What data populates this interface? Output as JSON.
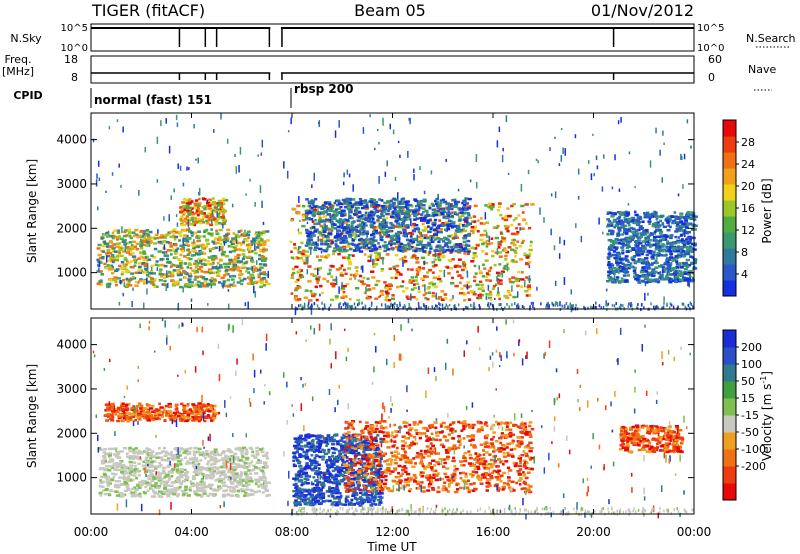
{
  "header": {
    "station": "TIGER (fitACF)",
    "beam": "Beam 05",
    "date": "01/Nov/2012"
  },
  "tracks": {
    "nsky_label": "N.Sky",
    "nsky_ticks": [
      "10^5",
      "10^0"
    ],
    "nsearch_label": "N.Search",
    "nsearch_ticks": [
      "10^5",
      "10^0"
    ],
    "freq_label_1": "Freq.",
    "freq_label_2": "[MHz]",
    "freq_ticks": [
      "18",
      "8"
    ],
    "nave_label": "Nave",
    "nave_ticks": [
      "60",
      "0"
    ],
    "cpid_label": "CPID",
    "cpid_segments": [
      {
        "name": "normal (fast) 151",
        "start_hour": 0,
        "end_hour": 7.1
      },
      {
        "name": "rbsp 200",
        "start_hour": 7.6,
        "end_hour": 24
      }
    ]
  },
  "chart_data": [
    {
      "type": "heatmap",
      "title": "",
      "xlabel": "Time UT",
      "ylabel": "Slant Range [km]",
      "x_ticks": [
        "00:00",
        "04:00",
        "08:00",
        "12:00",
        "16:00",
        "20:00",
        "00:00"
      ],
      "x_range_hours": [
        0,
        24
      ],
      "y_ticks": [
        1000,
        2000,
        3000,
        4000
      ],
      "ylim": [
        180,
        4600
      ],
      "colorbar": {
        "label": "Power [dB]",
        "ticks": [
          4,
          8,
          12,
          16,
          20,
          24,
          28
        ],
        "range": [
          0,
          32
        ],
        "colors": [
          "#1530e0",
          "#2a58c8",
          "#2f7a9c",
          "#3c9870",
          "#52ad40",
          "#9bc828",
          "#f0d018",
          "#f0a01a",
          "#f07014",
          "#ee3c10",
          "#e80808"
        ]
      },
      "regions": [
        {
          "name": "early echoes",
          "t": [
            0.2,
            7.0
          ],
          "r": [
            700,
            2000
          ],
          "level": "medium-high"
        },
        {
          "name": "early far band",
          "t": [
            3.5,
            5.3
          ],
          "r": [
            2100,
            2700
          ],
          "level": "high"
        },
        {
          "name": "main evening band",
          "t": [
            7.9,
            17.5
          ],
          "r": [
            400,
            2600
          ],
          "level": "high"
        },
        {
          "name": "diagonal band",
          "t": [
            8.5,
            15.0
          ],
          "r": [
            1500,
            2700
          ],
          "level": "low"
        },
        {
          "name": "late scatter",
          "t": [
            20.5,
            24.0
          ],
          "r": [
            800,
            2400
          ],
          "level": "low"
        }
      ],
      "data_gaps": [
        {
          "start_hour": 7.1,
          "end_hour": 7.6
        }
      ]
    },
    {
      "type": "heatmap",
      "title": "",
      "xlabel": "Time UT",
      "ylabel": "Slant Range [km]",
      "x_ticks": [
        "00:00",
        "04:00",
        "08:00",
        "12:00",
        "16:00",
        "20:00",
        "00:00"
      ],
      "x_range_hours": [
        0,
        24
      ],
      "y_ticks": [
        1000,
        2000,
        3000,
        4000
      ],
      "ylim": [
        180,
        4600
      ],
      "colorbar": {
        "label": "Velocity [m s^-1]",
        "ticks": [
          200,
          100,
          50,
          15,
          -15,
          -50,
          -100,
          -200
        ],
        "colors": [
          "#1a2bd8",
          "#2a50c8",
          "#2f7a8e",
          "#40a040",
          "#80c050",
          "#c8c8c0",
          "#f0a020",
          "#f07014",
          "#ee3c10",
          "#e80808"
        ]
      },
      "regions": [
        {
          "name": "ground scatter band",
          "t": [
            0.3,
            7.0
          ],
          "r": [
            600,
            1700
          ],
          "velocity": "near zero"
        },
        {
          "name": "early red echoes",
          "t": [
            0.5,
            5.0
          ],
          "r": [
            2300,
            2700
          ],
          "velocity": "negative"
        },
        {
          "name": "evening blue echoes",
          "t": [
            8.0,
            11.5
          ],
          "r": [
            400,
            2000
          ],
          "velocity": "positive"
        },
        {
          "name": "evening orange band",
          "t": [
            10.0,
            17.5
          ],
          "r": [
            700,
            2300
          ],
          "velocity": "negative"
        },
        {
          "name": "late red echoes",
          "t": [
            21.0,
            23.5
          ],
          "r": [
            1600,
            2200
          ],
          "velocity": "negative"
        }
      ],
      "data_gaps": [
        {
          "start_hour": 7.1,
          "end_hour": 7.6
        }
      ]
    }
  ]
}
